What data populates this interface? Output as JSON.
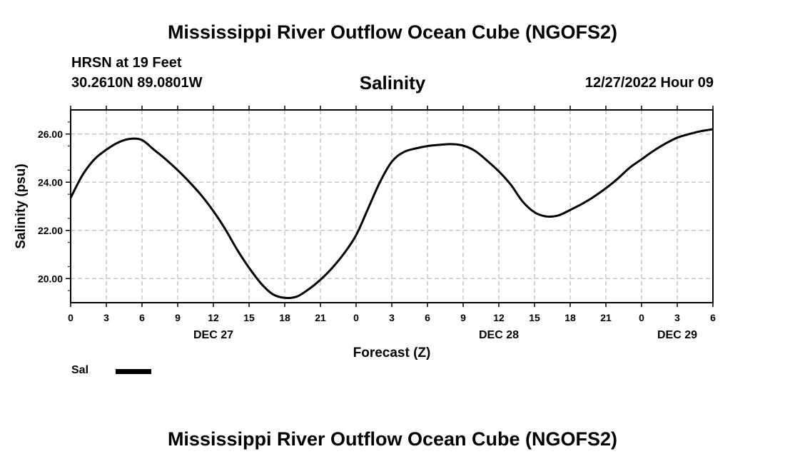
{
  "header": {
    "title": "Mississippi River Outflow Ocean Cube (NGOFS2)",
    "station": "HRSN at 19 Feet",
    "coords": "30.2610N  89.0801W",
    "variable": "Salinity",
    "run": "12/27/2022 Hour 09"
  },
  "footer": {
    "title": "Mississippi River Outflow Ocean Cube (NGOFS2)"
  },
  "legend": {
    "label": "Sal"
  },
  "chart_data": {
    "type": "line",
    "title": "Salinity",
    "xlabel": "Forecast (Z)",
    "ylabel": "Salinity (psu)",
    "xlim": [
      0,
      54
    ],
    "ylim": [
      19.0,
      27.0
    ],
    "grid": true,
    "legend_position": "bottom-left",
    "x_ticks": [
      0,
      3,
      6,
      9,
      12,
      15,
      18,
      21,
      24,
      27,
      30,
      33,
      36,
      39,
      42,
      45,
      48,
      51,
      54
    ],
    "x_tick_labels": [
      "0",
      "3",
      "6",
      "9",
      "12",
      "15",
      "18",
      "21",
      "0",
      "3",
      "6",
      "9",
      "12",
      "15",
      "18",
      "21",
      "0",
      "3",
      "6"
    ],
    "date_labels": [
      {
        "x": 12,
        "label": "DEC 27"
      },
      {
        "x": 36,
        "label": "DEC 28"
      },
      {
        "x": 51,
        "label": "DEC 29"
      }
    ],
    "y_ticks": [
      20.0,
      22.0,
      24.0,
      26.0
    ],
    "y_tick_labels": [
      "20.00",
      "22.00",
      "24.00",
      "26.00"
    ],
    "series": [
      {
        "name": "Sal",
        "x": [
          0,
          1,
          2,
          3,
          4,
          5,
          6,
          7,
          8,
          9,
          10,
          11,
          12,
          13,
          14,
          15,
          16,
          17,
          18,
          19,
          20,
          21,
          22,
          23,
          24,
          25,
          26,
          27,
          28,
          29,
          30,
          31,
          32,
          33,
          34,
          35,
          36,
          37,
          38,
          39,
          40,
          41,
          42,
          43,
          44,
          45,
          46,
          47,
          48,
          49,
          50,
          51,
          52,
          53,
          54
        ],
        "values": [
          23.35,
          24.3,
          24.95,
          25.35,
          25.65,
          25.8,
          25.75,
          25.35,
          24.95,
          24.5,
          24.0,
          23.45,
          22.8,
          22.05,
          21.2,
          20.45,
          19.8,
          19.35,
          19.2,
          19.25,
          19.55,
          19.95,
          20.45,
          21.05,
          21.8,
          22.9,
          24.0,
          24.85,
          25.25,
          25.4,
          25.5,
          25.55,
          25.58,
          25.52,
          25.3,
          24.9,
          24.45,
          23.9,
          23.2,
          22.75,
          22.58,
          22.62,
          22.85,
          23.1,
          23.4,
          23.75,
          24.15,
          24.6,
          24.95,
          25.3,
          25.6,
          25.85,
          26.0,
          26.12,
          26.2
        ]
      }
    ]
  }
}
